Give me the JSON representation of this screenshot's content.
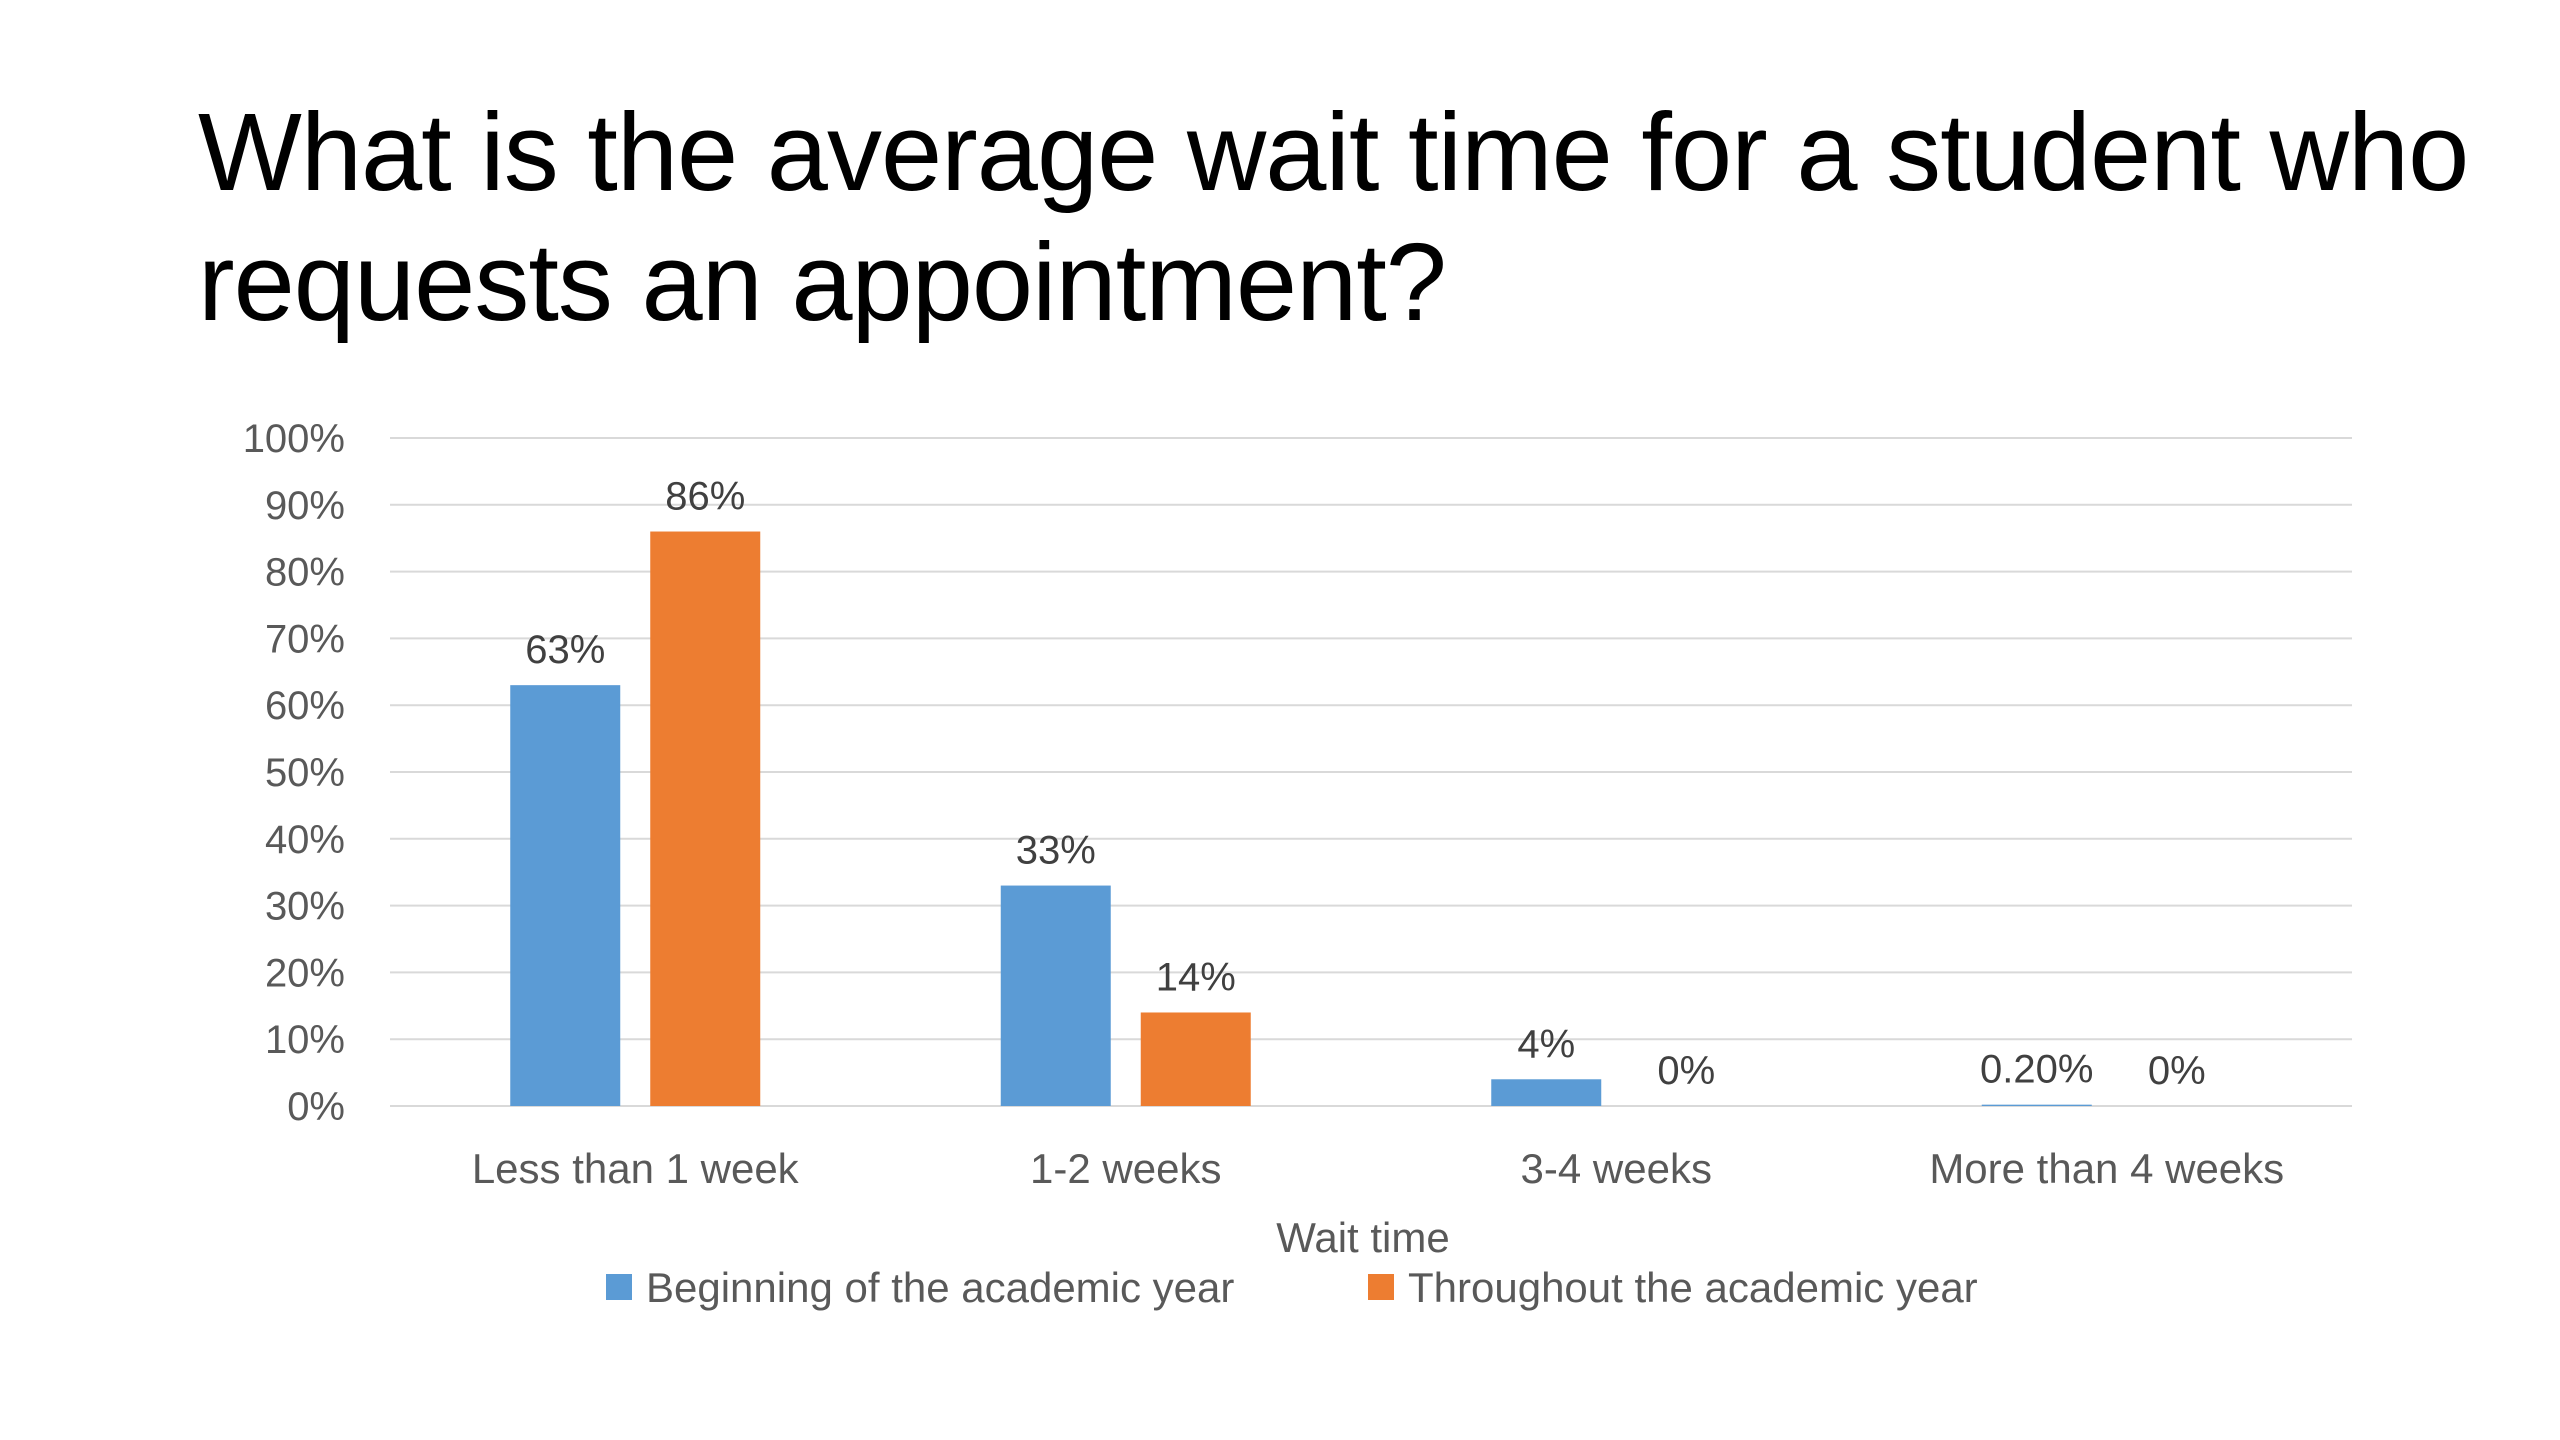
{
  "title": "What is the average wait time for a student who requests an appointment?",
  "colors": {
    "series_1": "#5B9BD5",
    "series_2": "#ED7D31",
    "gridline": "#D9D9D9",
    "text": "#595959"
  },
  "chart_data": {
    "type": "bar",
    "categories": [
      "Less than 1 week",
      "1-2 weeks",
      "3-4 weeks",
      "More than 4 weeks"
    ],
    "series": [
      {
        "name": "Beginning of the academic year",
        "values": [
          63,
          33,
          4,
          0.2
        ],
        "labels": [
          "63%",
          "33%",
          "4%",
          "0.20%"
        ]
      },
      {
        "name": "Throughout the academic year",
        "values": [
          86,
          14,
          0,
          0
        ],
        "labels": [
          "86%",
          "14%",
          "0%",
          "0%"
        ]
      }
    ],
    "xlabel": "Wait time",
    "ylabel": "",
    "ylim": [
      0,
      100
    ],
    "yticks": [
      "0%",
      "10%",
      "20%",
      "30%",
      "40%",
      "50%",
      "60%",
      "70%",
      "80%",
      "90%",
      "100%"
    ],
    "grid": true,
    "legend_position": "bottom"
  }
}
